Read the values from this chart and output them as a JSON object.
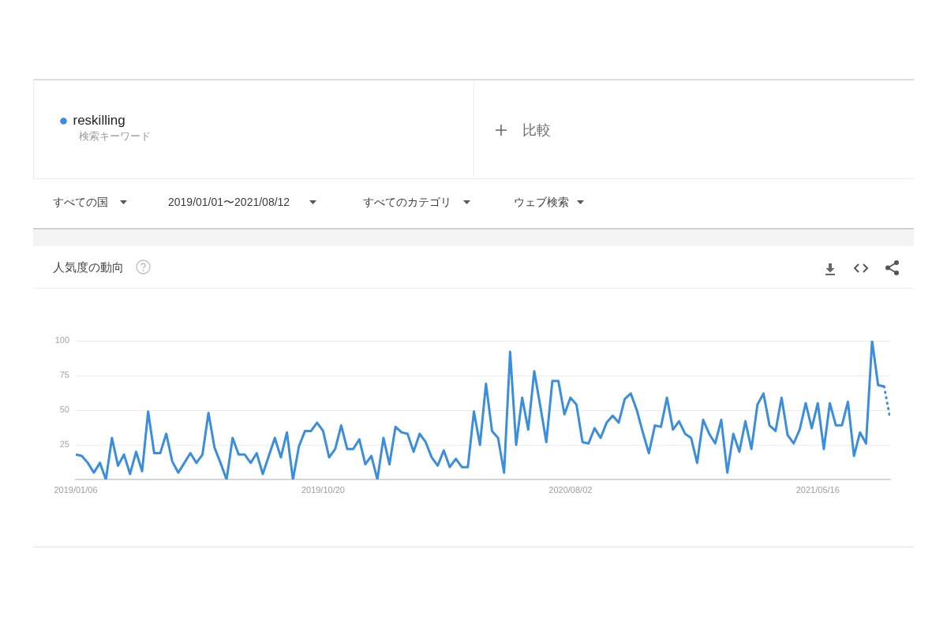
{
  "chart_data": {
    "type": "line",
    "title": "人気度の動向",
    "annotations": [
      "検索キーワード",
      "比較",
      "すべての国",
      "2019/01/01〜2021/08/12",
      "すべてのカテゴリ",
      "ウェブ検索"
    ],
    "series": [
      {
        "name": "reskilling",
        "color": "#3b8edc",
        "x": [
          "2019-01-06",
          "2019-01-13",
          "2019-01-20",
          "2019-01-27",
          "2019-02-03",
          "2019-02-10",
          "2019-02-17",
          "2019-02-24",
          "2019-03-03",
          "2019-03-10",
          "2019-03-17",
          "2019-03-24",
          "2019-03-31",
          "2019-04-07",
          "2019-04-14",
          "2019-04-21",
          "2019-04-28",
          "2019-05-05",
          "2019-05-12",
          "2019-05-19",
          "2019-05-26",
          "2019-06-02",
          "2019-06-09",
          "2019-06-16",
          "2019-06-23",
          "2019-06-30",
          "2019-07-07",
          "2019-07-14",
          "2019-07-21",
          "2019-07-28",
          "2019-08-04",
          "2019-08-11",
          "2019-08-18",
          "2019-08-25",
          "2019-09-01",
          "2019-09-08",
          "2019-09-15",
          "2019-09-22",
          "2019-09-29",
          "2019-10-06",
          "2019-10-13",
          "2019-10-20",
          "2019-10-27",
          "2019-11-03",
          "2019-11-10",
          "2019-11-17",
          "2019-11-24",
          "2019-12-01",
          "2019-12-08",
          "2019-12-15",
          "2019-12-22",
          "2019-12-29",
          "2020-01-05",
          "2020-01-12",
          "2020-01-19",
          "2020-01-26",
          "2020-02-02",
          "2020-02-09",
          "2020-02-16",
          "2020-02-23",
          "2020-03-01",
          "2020-03-08",
          "2020-03-15",
          "2020-03-22",
          "2020-03-29",
          "2020-04-05",
          "2020-04-12",
          "2020-04-19",
          "2020-04-26",
          "2020-05-03",
          "2020-05-10",
          "2020-05-17",
          "2020-05-24",
          "2020-05-31",
          "2020-06-07",
          "2020-06-14",
          "2020-06-21",
          "2020-06-28",
          "2020-07-05",
          "2020-07-12",
          "2020-07-19",
          "2020-07-26",
          "2020-08-02",
          "2020-08-09",
          "2020-08-16",
          "2020-08-23",
          "2020-08-30",
          "2020-09-06",
          "2020-09-13",
          "2020-09-20",
          "2020-09-27",
          "2020-10-04",
          "2020-10-11",
          "2020-10-18",
          "2020-10-25",
          "2020-11-01",
          "2020-11-08",
          "2020-11-15",
          "2020-11-22",
          "2020-11-29",
          "2020-12-06",
          "2020-12-13",
          "2020-12-20",
          "2020-12-27",
          "2021-01-03",
          "2021-01-10",
          "2021-01-17",
          "2021-01-24",
          "2021-01-31",
          "2021-02-07",
          "2021-02-14",
          "2021-02-21",
          "2021-02-28",
          "2021-03-07",
          "2021-03-14",
          "2021-03-21",
          "2021-03-28",
          "2021-04-04",
          "2021-04-11",
          "2021-04-18",
          "2021-04-25",
          "2021-05-02",
          "2021-05-09",
          "2021-05-16",
          "2021-05-23",
          "2021-05-30",
          "2021-06-06",
          "2021-06-13",
          "2021-06-20",
          "2021-06-27",
          "2021-07-04",
          "2021-07-11",
          "2021-07-18",
          "2021-07-25",
          "2021-08-01"
        ],
        "values": [
          18,
          17,
          12,
          5,
          12,
          0,
          30,
          10,
          18,
          4,
          20,
          6,
          49,
          19,
          19,
          33,
          13,
          5,
          12,
          19,
          12,
          18,
          48,
          23,
          12,
          0,
          30,
          18,
          18,
          12,
          19,
          4,
          17,
          30,
          16,
          34,
          0,
          24,
          35,
          35,
          41,
          35,
          16,
          22,
          39,
          22,
          22,
          29,
          11,
          17,
          0,
          30,
          11,
          38,
          34,
          33,
          20,
          33,
          27,
          16,
          10,
          21,
          9,
          15,
          9,
          9,
          49,
          25,
          69,
          35,
          30,
          5,
          92,
          25,
          59,
          36,
          78,
          53,
          27,
          71,
          71,
          47,
          59,
          54,
          27,
          26,
          37,
          30,
          41,
          46,
          41,
          58,
          62,
          50,
          34,
          19,
          39,
          38,
          59,
          36,
          42,
          33,
          30,
          12,
          43,
          33,
          26,
          43,
          5,
          33,
          20,
          42,
          22,
          54,
          62,
          39,
          35,
          59,
          32,
          26,
          36,
          55,
          37,
          55,
          22,
          55,
          39,
          39,
          56,
          17,
          34,
          26,
          100,
          68,
          67
        ]
      },
      {
        "color": "#3b8edc",
        "line_style": "dotted",
        "x": [
          "2021-08-01",
          "2021-08-08"
        ],
        "values": [
          67,
          44
        ]
      }
    ],
    "xlim": [
      "2019-01-06",
      "2021-08-08"
    ],
    "xticks": [
      {
        "value": "2019-01-06",
        "label": "2019/01/06"
      },
      {
        "value": "2019-10-20",
        "label": "2019/10/20"
      },
      {
        "value": "2020-08-02",
        "label": "2020/08/02"
      },
      {
        "value": "2021-05-16",
        "label": "2021/05/16"
      }
    ],
    "ylim": [
      0,
      100
    ],
    "yticks": [
      25,
      50,
      75,
      100
    ],
    "grid": "y",
    "legend": "top left"
  }
}
